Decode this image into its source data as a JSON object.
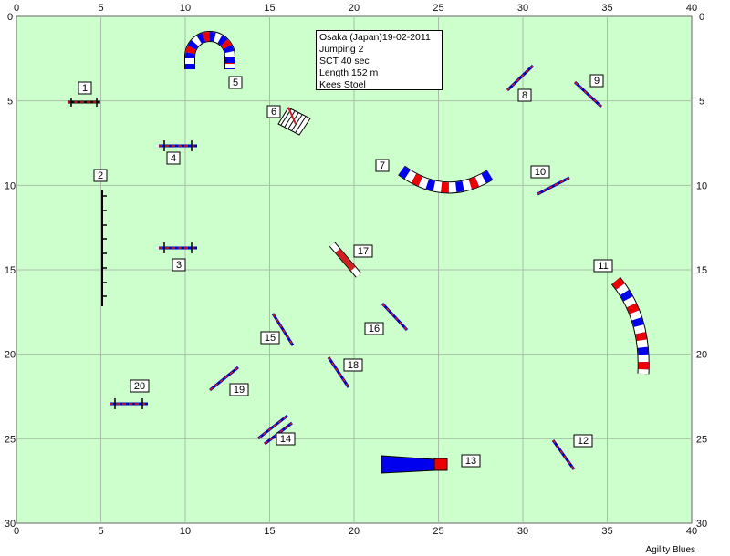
{
  "info": {
    "event": "Osaka (Japan)19-02-2011",
    "class": "Jumping 2",
    "sct": "SCT 40 sec",
    "length": "Length 152 m",
    "judge": "Kees Stoel"
  },
  "footer": "Agility Blues",
  "axes": {
    "x_ticks": [
      "0",
      "5",
      "10",
      "15",
      "20",
      "25",
      "30",
      "35",
      "40"
    ],
    "y_ticks": [
      "0",
      "5",
      "10",
      "15",
      "20",
      "25",
      "30"
    ]
  },
  "colors": {
    "field": "#ccffcc",
    "grid": "#a9bfa9",
    "tunnel_blue": "#0000ee",
    "tunnel_red": "#ee0000",
    "jump_red": "#d22020"
  },
  "obstacles": [
    {
      "number": "1",
      "type": "jump"
    },
    {
      "number": "2",
      "type": "weave-poles"
    },
    {
      "number": "3",
      "type": "jump"
    },
    {
      "number": "4",
      "type": "jump"
    },
    {
      "number": "5",
      "type": "tunnel"
    },
    {
      "number": "6",
      "type": "wall"
    },
    {
      "number": "7",
      "type": "tunnel"
    },
    {
      "number": "8",
      "type": "jump"
    },
    {
      "number": "9",
      "type": "jump"
    },
    {
      "number": "10",
      "type": "jump"
    },
    {
      "number": "11",
      "type": "tunnel"
    },
    {
      "number": "12",
      "type": "jump"
    },
    {
      "number": "13",
      "type": "collapsed-tunnel"
    },
    {
      "number": "14",
      "type": "double-jump"
    },
    {
      "number": "15",
      "type": "jump"
    },
    {
      "number": "16",
      "type": "jump"
    },
    {
      "number": "17",
      "type": "tyre"
    },
    {
      "number": "18",
      "type": "jump"
    },
    {
      "number": "19",
      "type": "jump"
    },
    {
      "number": "20",
      "type": "jump"
    }
  ]
}
